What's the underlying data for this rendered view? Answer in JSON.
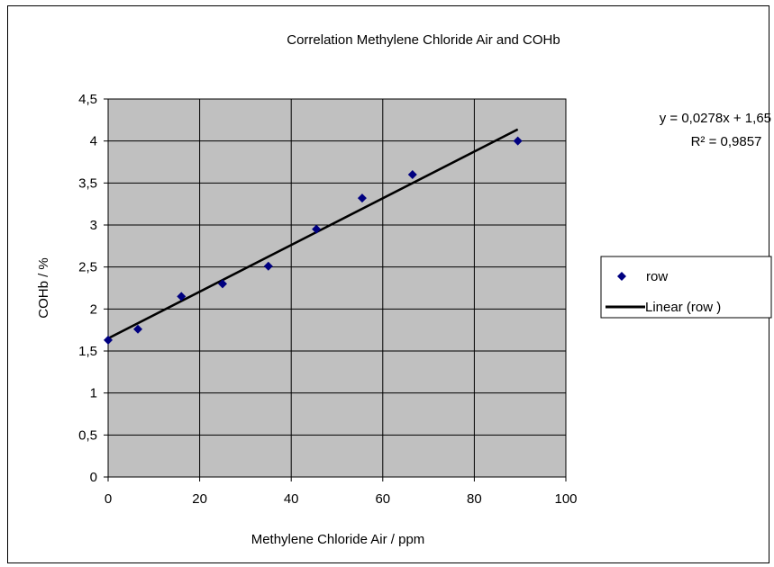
{
  "chart_data": {
    "type": "scatter",
    "title": "Correlation Methylene Chloride Air and COHb",
    "xlabel": "Methylene Chloride Air / ppm",
    "ylabel": "COHb / %",
    "xlim": [
      0,
      100
    ],
    "ylim": [
      0,
      4.5
    ],
    "x_ticks": [
      0,
      20,
      40,
      60,
      80,
      100
    ],
    "x_tick_labels": [
      "0",
      "20",
      "40",
      "60",
      "80",
      "100"
    ],
    "y_ticks": [
      0,
      0.5,
      1,
      1.5,
      2,
      2.5,
      3,
      3.5,
      4,
      4.5
    ],
    "y_tick_labels": [
      "0",
      "0,5",
      "1",
      "1,5",
      "2",
      "2,5",
      "3",
      "3,5",
      "4",
      "4,5"
    ],
    "grid": true,
    "plot_background": "#c0c0c0",
    "series": [
      {
        "name": "row",
        "marker": "diamond",
        "color": "#000080",
        "points": [
          {
            "x": 0,
            "y": 1.63
          },
          {
            "x": 6.5,
            "y": 1.76
          },
          {
            "x": 16,
            "y": 2.15
          },
          {
            "x": 25,
            "y": 2.3
          },
          {
            "x": 35,
            "y": 2.51
          },
          {
            "x": 45.5,
            "y": 2.95
          },
          {
            "x": 55.5,
            "y": 3.32
          },
          {
            "x": 66.5,
            "y": 3.6
          },
          {
            "x": 89.5,
            "y": 4.0
          }
        ]
      }
    ],
    "trendline": {
      "name": "Linear (row )",
      "slope": 0.0278,
      "intercept": 1.65,
      "x_range": [
        0,
        89.5
      ],
      "color": "#000000",
      "equation_label": "y = 0,0278x + 1,65",
      "r2_label": "R² = 0,9857"
    },
    "legend": {
      "placement": "right",
      "entries": [
        {
          "label": "row",
          "symbol": "diamond",
          "color": "#000080"
        },
        {
          "label": "Linear (row )",
          "symbol": "line",
          "color": "#000000"
        }
      ]
    }
  }
}
